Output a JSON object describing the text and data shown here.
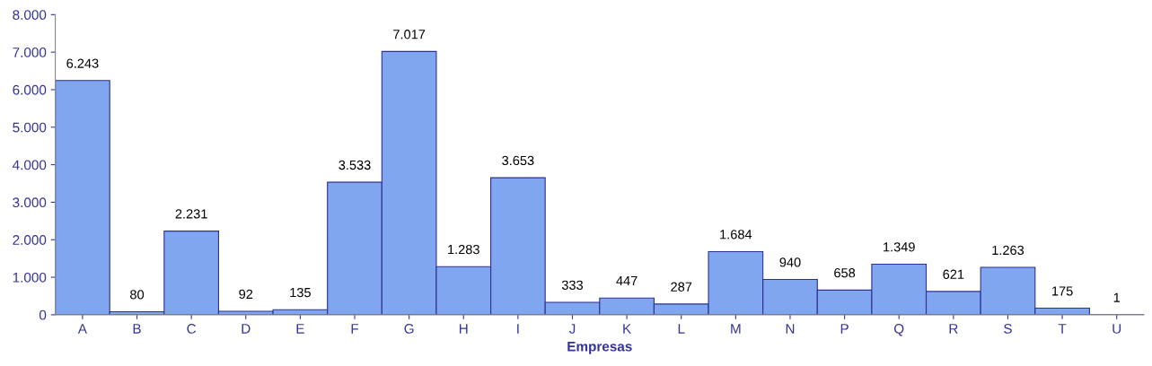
{
  "chart_data": {
    "type": "bar",
    "xlabel": "Empresas",
    "categories": [
      "A",
      "B",
      "C",
      "D",
      "E",
      "F",
      "G",
      "H",
      "I",
      "J",
      "K",
      "L",
      "M",
      "N",
      "P",
      "Q",
      "R",
      "S",
      "T",
      "U"
    ],
    "values": [
      6243,
      80,
      2231,
      92,
      135,
      3533,
      7017,
      1283,
      3653,
      333,
      447,
      287,
      1684,
      940,
      658,
      1349,
      621,
      1263,
      175,
      1
    ],
    "value_labels": [
      "6.243",
      "80",
      "2.231",
      "92",
      "135",
      "3.533",
      "7.017",
      "1.283",
      "3.653",
      "333",
      "447",
      "287",
      "1.684",
      "940",
      "658",
      "1.349",
      "621",
      "1.263",
      "175",
      "1"
    ],
    "color": "#7fa6ef",
    "ylim": [
      0,
      8000
    ],
    "yticks": [
      0,
      {
        "value": 1000,
        "label": "1.000"
      },
      {
        "value": 2000,
        "label": "2.000"
      },
      {
        "value": 3000,
        "label": "3.000"
      },
      {
        "value": 4000,
        "label": "4.000"
      },
      {
        "value": 5000,
        "label": "5.000"
      },
      {
        "value": 6000,
        "label": "6.000"
      },
      {
        "value": 7000,
        "label": "7.000"
      },
      {
        "value": 8000,
        "label": "8.000"
      }
    ],
    "grid": false
  }
}
